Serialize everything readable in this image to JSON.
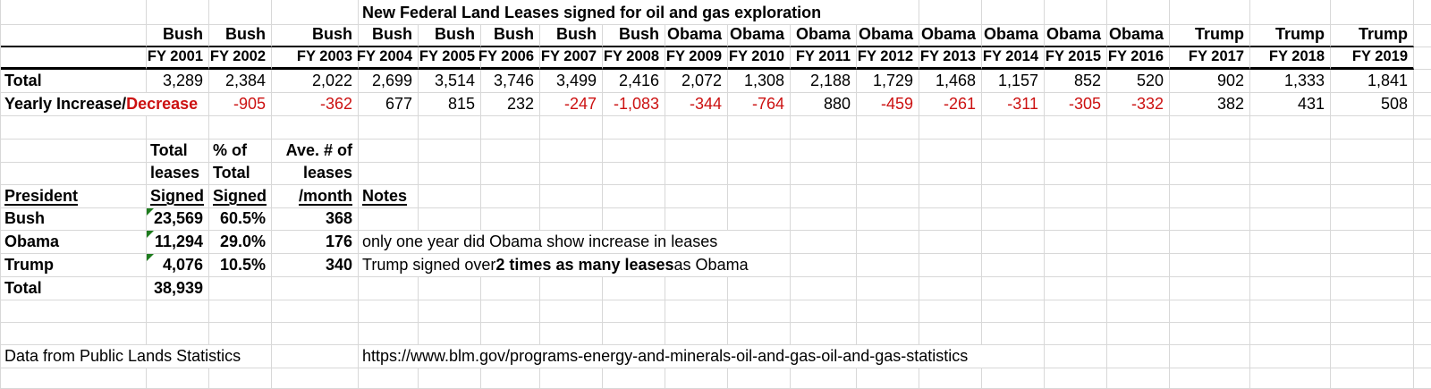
{
  "title": "New Federal Land Leases signed for oil and gas exploration",
  "labels": {
    "total_row": "Total",
    "yearly_prefix": "Yearly Increase/",
    "yearly_suffix": "Decrease"
  },
  "fiscal_columns": [
    {
      "president": "Bush",
      "fy": "FY 2001",
      "total": "3,289",
      "change": ""
    },
    {
      "president": "Bush",
      "fy": "FY 2002",
      "total": "2,384",
      "change": "-905"
    },
    {
      "president": "Bush",
      "fy": "FY 2003",
      "total": "2,022",
      "change": "-362"
    },
    {
      "president": "Bush",
      "fy": "FY 2004",
      "total": "2,699",
      "change": "677"
    },
    {
      "president": "Bush",
      "fy": "FY 2005",
      "total": "3,514",
      "change": "815"
    },
    {
      "president": "Bush",
      "fy": "FY 2006",
      "total": "3,746",
      "change": "232"
    },
    {
      "president": "Bush",
      "fy": "FY 2007",
      "total": "3,499",
      "change": "-247"
    },
    {
      "president": "Bush",
      "fy": "FY 2008",
      "total": "2,416",
      "change": "-1,083"
    },
    {
      "president": "Obama",
      "fy": "FY 2009",
      "total": "2,072",
      "change": "-344"
    },
    {
      "president": "Obama",
      "fy": "FY 2010",
      "total": "1,308",
      "change": "-764"
    },
    {
      "president": "Obama",
      "fy": "FY 2011",
      "total": "2,188",
      "change": "880"
    },
    {
      "president": "Obama",
      "fy": "FY 2012",
      "total": "1,729",
      "change": "-459"
    },
    {
      "president": "Obama",
      "fy": "FY 2013",
      "total": "1,468",
      "change": "-261"
    },
    {
      "president": "Obama",
      "fy": "FY 2014",
      "total": "1,157",
      "change": "-311"
    },
    {
      "president": "Obama",
      "fy": "FY 2015",
      "total": "852",
      "change": "-305"
    },
    {
      "president": "Obama",
      "fy": "FY 2016",
      "total": "520",
      "change": "-332"
    },
    {
      "president": "Trump",
      "fy": "FY 2017",
      "total": "902",
      "change": "382"
    },
    {
      "president": "Trump",
      "fy": "FY 2018",
      "total": "1,333",
      "change": "431"
    },
    {
      "president": "Trump",
      "fy": "FY 2019",
      "total": "1,841",
      "change": "508"
    }
  ],
  "summary": {
    "header": {
      "president": "President",
      "total_leases": [
        "Total",
        "leases",
        "Signed"
      ],
      "pct_of_total": [
        "% of",
        "Total",
        "Signed"
      ],
      "avg_per_month": [
        "Ave. # of",
        "leases",
        "/month"
      ],
      "notes": "Notes"
    },
    "rows": [
      {
        "president": "Bush",
        "total_signed": "23,569",
        "pct_of_total": "60.5%",
        "avg_per_month": "368",
        "note_parts": []
      },
      {
        "president": "Obama",
        "total_signed": "11,294",
        "pct_of_total": "29.0%",
        "avg_per_month": "176",
        "note_parts": [
          {
            "text": "only one year did Obama show increase in leases",
            "bold": false
          }
        ]
      },
      {
        "president": "Trump",
        "total_signed": "4,076",
        "pct_of_total": "10.5%",
        "avg_per_month": "340",
        "note_parts": [
          {
            "text": "Trump  signed over ",
            "bold": false
          },
          {
            "text": "2 times as many leases",
            "bold": true
          },
          {
            "text": " as Obama",
            "bold": false
          }
        ]
      }
    ],
    "total": {
      "label": "Total",
      "value": "38,939"
    }
  },
  "footer": {
    "source": "Data from Public Lands Statistics",
    "url": "https://www.blm.gov/programs-energy-and-minerals-oil-and-gas-oil-and-gas-statistics"
  },
  "colors": {
    "negative_text": "#cc1111",
    "flag_green": "#1e7c1e",
    "gridline": "#d8d8d8",
    "heavy_border": "#000000"
  }
}
